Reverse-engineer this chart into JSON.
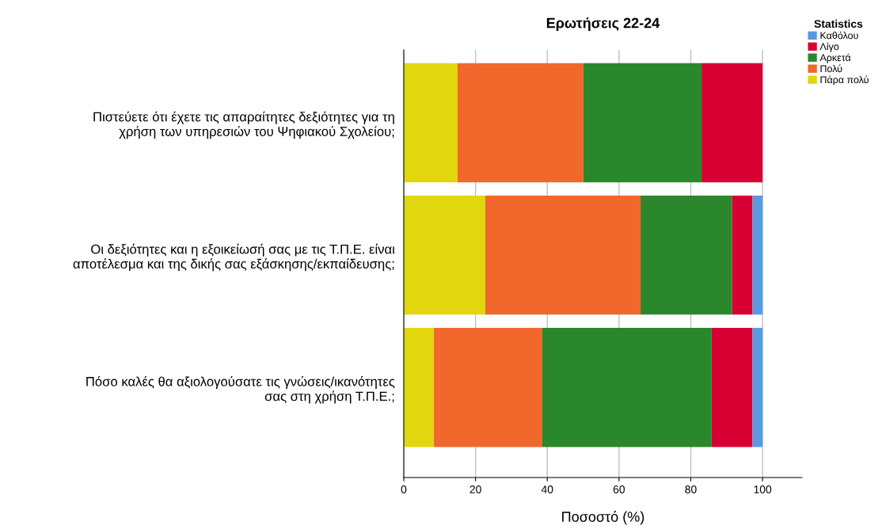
{
  "chart_data": {
    "type": "bar",
    "title": "Ερωτήσεις 22-24",
    "xlabel": "Ποσοστό (%)",
    "legend_title": "Statistics",
    "orientation": "horizontal",
    "stacked": true,
    "grid": "x",
    "legend": "top right",
    "categories": [
      "Πιστεύετε ότι έχετε τις απαραίτητες δεξιότητες για τη\nχρήση των υπηρεσιών του Ψηφιακού Σχολείου;",
      "Οι δεξιότητες και η εξοικείωσή σας με τις Τ.Π.Ε. είναι\nαποτέλεσμα και της δικής σας εξάσκησης/εκπαίδευσης;",
      "Πόσο καλές θα αξιολογούσατε τις γνώσεις/ικανότητες\nσας στη χρήση Τ.Π.Ε.;"
    ],
    "xlim": [
      0,
      111
    ],
    "xticks": [
      0,
      20,
      40,
      60,
      80,
      100
    ],
    "series": [
      {
        "name": "Πάρα πολύ",
        "color": "#e2d60f",
        "values": [
          15.0,
          22.7,
          8.4
        ]
      },
      {
        "name": "Πολύ",
        "color": "#f1672c",
        "values": [
          35.0,
          43.3,
          30.2
        ]
      },
      {
        "name": "Αρκετά",
        "color": "#2a872b",
        "values": [
          33.0,
          25.5,
          47.2
        ]
      },
      {
        "name": "Λίγο",
        "color": "#d60032",
        "values": [
          17.0,
          5.7,
          11.4
        ]
      },
      {
        "name": "Καθόλου",
        "color": "#5899e2",
        "values": [
          null,
          2.8,
          2.8
        ]
      }
    ]
  }
}
